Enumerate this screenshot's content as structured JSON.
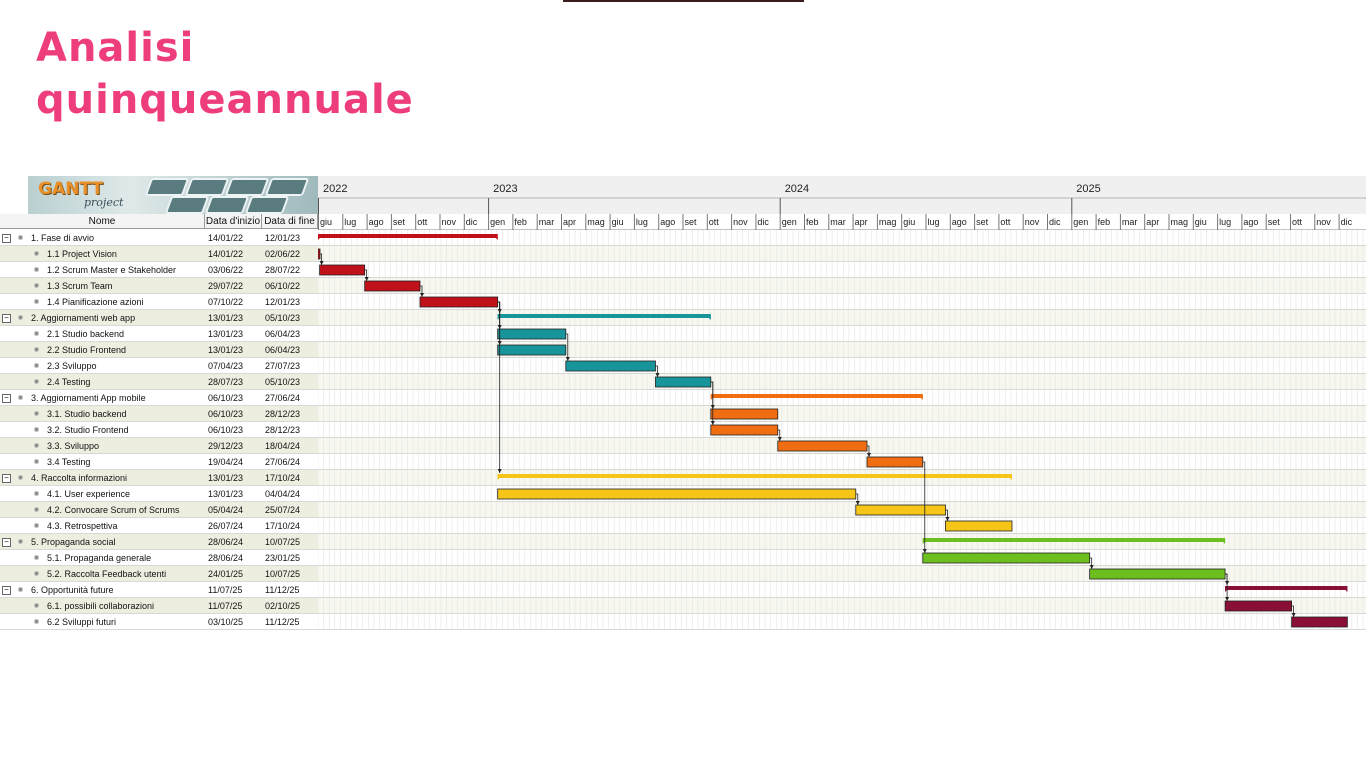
{
  "title": {
    "line1": "Analisi",
    "line2": "quinqueannuale"
  },
  "logo": {
    "name": "GANTT",
    "sub": "project"
  },
  "columns": {
    "name": "Nome",
    "start": "Data d'inizio",
    "end": "Data di fine"
  },
  "timeline": {
    "years": [
      "2022",
      "2023",
      "2024",
      "2025"
    ],
    "months": [
      "giu",
      "lug",
      "ago",
      "set",
      "ott",
      "nov",
      "dic",
      "gen",
      "feb",
      "mar",
      "apr",
      "mag",
      "giu",
      "lug",
      "ago",
      "set",
      "ott",
      "nov",
      "dic",
      "gen",
      "feb",
      "mar",
      "apr",
      "mag",
      "giu",
      "lug",
      "ago",
      "set",
      "ott",
      "nov",
      "dic",
      "gen",
      "feb",
      "mar",
      "apr",
      "mag",
      "giu",
      "lug",
      "ago",
      "set",
      "ott",
      "nov",
      "dic"
    ]
  },
  "chart_data": {
    "type": "gantt",
    "tasks": [
      {
        "name": "1. Fase di avvio",
        "start": "14/01/22",
        "end": "12/01/23",
        "group": true,
        "color": "#c0101a"
      },
      {
        "name": "1.1 Project Vision",
        "start": "14/01/22",
        "end": "02/06/22",
        "group": false,
        "color": "#c0101a"
      },
      {
        "name": "1.2 Scrum Master e  Stakeholder",
        "start": "03/06/22",
        "end": "28/07/22",
        "group": false,
        "color": "#c0101a"
      },
      {
        "name": "1.3 Scrum Team",
        "start": "29/07/22",
        "end": "06/10/22",
        "group": false,
        "color": "#c0101a"
      },
      {
        "name": "1.4 Pianificazione azioni",
        "start": "07/10/22",
        "end": "12/01/23",
        "group": false,
        "color": "#c0101a"
      },
      {
        "name": "2. Aggiornamenti web app",
        "start": "13/01/23",
        "end": "05/10/23",
        "group": true,
        "color": "#17959a"
      },
      {
        "name": "2.1 Studio backend",
        "start": "13/01/23",
        "end": "06/04/23",
        "group": false,
        "color": "#17959a"
      },
      {
        "name": "2.2 Studio Frontend",
        "start": "13/01/23",
        "end": "06/04/23",
        "group": false,
        "color": "#17959a"
      },
      {
        "name": "2.3 Sviluppo",
        "start": "07/04/23",
        "end": "27/07/23",
        "group": false,
        "color": "#17959a"
      },
      {
        "name": "2.4 Testing",
        "start": "28/07/23",
        "end": "05/10/23",
        "group": false,
        "color": "#17959a"
      },
      {
        "name": "3. Aggiornamenti App mobile",
        "start": "06/10/23",
        "end": "27/06/24",
        "group": true,
        "color": "#f06d12"
      },
      {
        "name": "3.1. Studio backend",
        "start": "06/10/23",
        "end": "28/12/23",
        "group": false,
        "color": "#f06d12"
      },
      {
        "name": "3.2. Studio Frontend",
        "start": "06/10/23",
        "end": "28/12/23",
        "group": false,
        "color": "#f06d12"
      },
      {
        "name": "3.3. Sviluppo",
        "start": "29/12/23",
        "end": "18/04/24",
        "group": false,
        "color": "#f06d12"
      },
      {
        "name": "3.4 Testing",
        "start": "19/04/24",
        "end": "27/06/24",
        "group": false,
        "color": "#f06d12"
      },
      {
        "name": "4. Raccolta informazioni",
        "start": "13/01/23",
        "end": "17/10/24",
        "group": true,
        "color": "#f5c518"
      },
      {
        "name": "4.1. User experience",
        "start": "13/01/23",
        "end": "04/04/24",
        "group": false,
        "color": "#f5c518"
      },
      {
        "name": "4.2. Convocare Scrum of Scrums",
        "start": "05/04/24",
        "end": "25/07/24",
        "group": false,
        "color": "#f5c518"
      },
      {
        "name": "4.3. Retrospettiva",
        "start": "26/07/24",
        "end": "17/10/24",
        "group": false,
        "color": "#f5c518"
      },
      {
        "name": "5. Propaganda social",
        "start": "28/06/24",
        "end": "10/07/25",
        "group": true,
        "color": "#6cbf1e"
      },
      {
        "name": "5.1. Propaganda generale",
        "start": "28/06/24",
        "end": "23/01/25",
        "group": false,
        "color": "#6cbf1e"
      },
      {
        "name": "5.2. Raccolta Feedback utenti",
        "start": "24/01/25",
        "end": "10/07/25",
        "group": false,
        "color": "#6cbf1e"
      },
      {
        "name": "6. Opportunità future",
        "start": "11/07/25",
        "end": "11/12/25",
        "group": true,
        "color": "#8a0f35"
      },
      {
        "name": "6.1. possibili collaborazioni",
        "start": "11/07/25",
        "end": "02/10/25",
        "group": false,
        "color": "#8a0f35"
      },
      {
        "name": "6.2 Sviluppi futuri",
        "start": "03/10/25",
        "end": "11/12/25",
        "group": false,
        "color": "#8a0f35"
      }
    ],
    "dependencies": [
      [
        1,
        2
      ],
      [
        2,
        3
      ],
      [
        3,
        4
      ],
      [
        4,
        5
      ],
      [
        4,
        6
      ],
      [
        4,
        7
      ],
      [
        4,
        15
      ],
      [
        6,
        8
      ],
      [
        8,
        9
      ],
      [
        9,
        11
      ],
      [
        9,
        12
      ],
      [
        12,
        13
      ],
      [
        13,
        14
      ],
      [
        14,
        20
      ],
      [
        16,
        17
      ],
      [
        17,
        18
      ],
      [
        20,
        21
      ],
      [
        21,
        22
      ],
      [
        21,
        23
      ],
      [
        23,
        24
      ]
    ]
  }
}
